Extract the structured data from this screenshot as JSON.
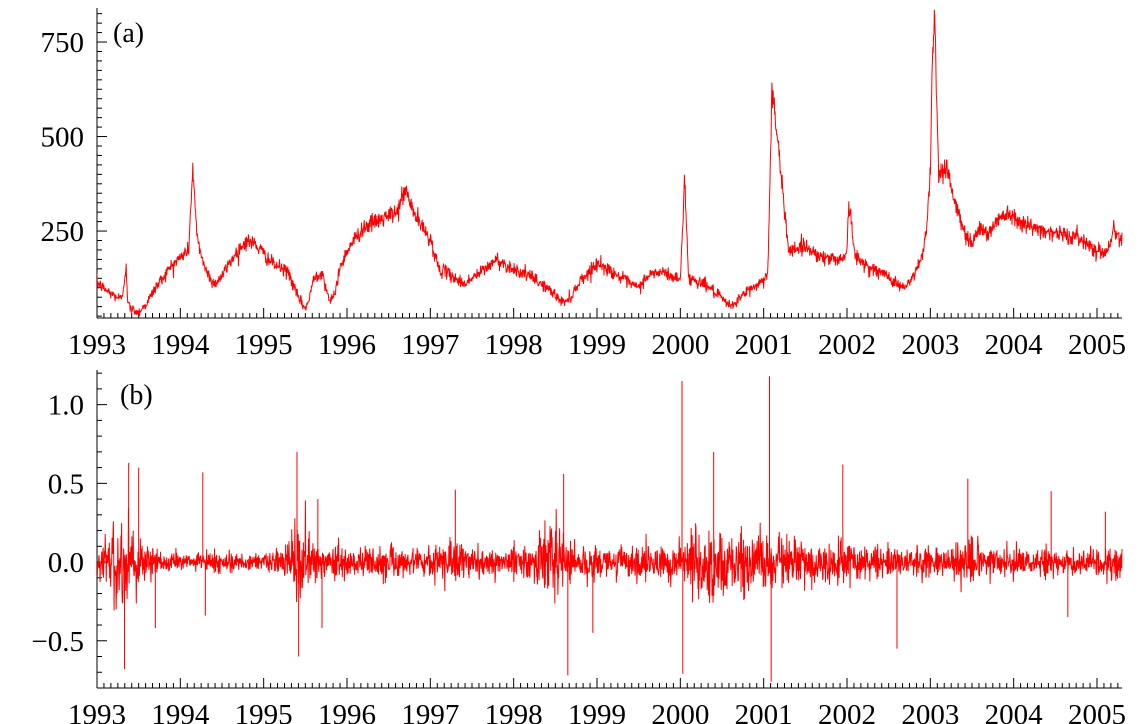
{
  "chart_data": [
    {
      "type": "line",
      "panel_label": "(a)",
      "xlim": [
        1993,
        2005.3
      ],
      "ylim": [
        20,
        840
      ],
      "x_ticks": [
        1993,
        1994,
        1995,
        1996,
        1997,
        1998,
        1999,
        2000,
        2001,
        2002,
        2003,
        2004,
        2005
      ],
      "x_tick_labels": [
        "1993",
        "1994",
        "1995",
        "1996",
        "1997",
        "1998",
        "1999",
        "2000",
        "2001",
        "2002",
        "2003",
        "2004",
        "2005"
      ],
      "y_ticks": [
        250,
        500,
        750
      ],
      "y_tick_labels": [
        "250",
        "500",
        "750"
      ],
      "grid": false,
      "color": "#ff0000",
      "noise": 9,
      "series": [
        {
          "x": [
            1993.0,
            1993.1,
            1993.2,
            1993.3,
            1993.35,
            1993.37,
            1993.4,
            1993.5,
            1993.6,
            1993.7,
            1993.8,
            1993.9,
            1994.0,
            1994.1,
            1994.15,
            1994.2,
            1994.3,
            1994.4,
            1994.5,
            1994.6,
            1994.7,
            1994.8,
            1994.9,
            1995.0,
            1995.1,
            1995.3,
            1995.4,
            1995.5,
            1995.55,
            1995.6,
            1995.7,
            1995.8,
            1995.85,
            1995.9,
            1996.0,
            1996.2,
            1996.4,
            1996.6,
            1996.7,
            1996.8,
            1996.9,
            1997.0,
            1997.1,
            1997.2,
            1997.4,
            1997.6,
            1997.8,
            1997.9,
            1998.0,
            1998.2,
            1998.4,
            1998.6,
            1998.7,
            1998.8,
            1998.9,
            1999.0,
            1999.2,
            1999.4,
            1999.5,
            1999.6,
            1999.7,
            1999.8,
            1999.9,
            2000.0,
            2000.05,
            2000.1,
            2000.3,
            2000.5,
            2000.6,
            2000.8,
            2001.0,
            2001.05,
            2001.1,
            2001.3,
            2001.5,
            2001.7,
            2001.9,
            2002.0,
            2002.02,
            2002.1,
            2002.3,
            2002.5,
            2002.6,
            2002.7,
            2002.8,
            2002.9,
            2002.95,
            2003.0,
            2003.02,
            2003.05,
            2003.1,
            2003.2,
            2003.3,
            2003.4,
            2003.5,
            2003.6,
            2003.7,
            2003.8,
            2003.9,
            2004.0,
            2004.2,
            2004.4,
            2004.6,
            2004.8,
            2005.0,
            2005.1,
            2005.2,
            2005.3
          ],
          "y": [
            115,
            95,
            80,
            70,
            160,
            60,
            45,
            35,
            60,
            100,
            130,
            160,
            180,
            200,
            420,
            230,
            150,
            110,
            130,
            170,
            200,
            225,
            215,
            190,
            165,
            140,
            80,
            45,
            70,
            130,
            140,
            60,
            80,
            140,
            200,
            260,
            280,
            300,
            360,
            300,
            260,
            230,
            150,
            140,
            110,
            140,
            175,
            160,
            150,
            130,
            100,
            60,
            80,
            120,
            140,
            165,
            140,
            110,
            100,
            130,
            140,
            140,
            130,
            120,
            390,
            125,
            110,
            70,
            50,
            90,
            120,
            140,
            630,
            200,
            210,
            180,
            175,
            190,
            330,
            180,
            150,
            130,
            110,
            100,
            130,
            180,
            250,
            400,
            680,
            830,
            400,
            420,
            320,
            250,
            220,
            260,
            240,
            280,
            300,
            290,
            260,
            250,
            240,
            230,
            200,
            190,
            250,
            230
          ]
        }
      ]
    },
    {
      "type": "line",
      "panel_label": "(b)",
      "xlim": [
        1993,
        2005.3
      ],
      "ylim": [
        -0.8,
        1.22
      ],
      "x_ticks": [
        1993,
        1994,
        1995,
        1996,
        1997,
        1998,
        1999,
        2000,
        2001,
        2002,
        2003,
        2004,
        2005
      ],
      "x_tick_labels": [
        "1993",
        "1994",
        "1995",
        "1996",
        "1997",
        "1998",
        "1999",
        "2000",
        "2001",
        "2002",
        "2003",
        "2004",
        "2005"
      ],
      "y_ticks": [
        -0.5,
        0.0,
        0.5,
        1.0
      ],
      "y_tick_labels": [
        "−0.5",
        "0.0",
        "0.5",
        "1.0"
      ],
      "grid": false,
      "color": "#ff0000",
      "volatility": {
        "x": [
          1993.0,
          1993.3,
          1993.4,
          1993.6,
          1993.8,
          1994.2,
          1994.4,
          1994.8,
          1995.2,
          1995.4,
          1995.6,
          1995.8,
          1996.2,
          1996.6,
          1996.9,
          1997.2,
          1997.5,
          1997.8,
          1998.2,
          1998.5,
          1998.8,
          1999.0,
          1999.5,
          2000.0,
          2000.2,
          2000.5,
          2001.0,
          2001.3,
          2001.8,
          2002.3,
          2002.8,
          2003.2,
          2003.5,
          2003.8,
          2004.2,
          2004.8,
          2005.3
        ],
        "y": [
          0.04,
          0.2,
          0.12,
          0.07,
          0.03,
          0.03,
          0.04,
          0.03,
          0.04,
          0.16,
          0.07,
          0.05,
          0.05,
          0.06,
          0.04,
          0.08,
          0.05,
          0.05,
          0.06,
          0.15,
          0.07,
          0.05,
          0.06,
          0.09,
          0.12,
          0.12,
          0.09,
          0.09,
          0.08,
          0.06,
          0.05,
          0.06,
          0.08,
          0.05,
          0.05,
          0.05,
          0.06
        ]
      },
      "spikes": [
        {
          "x": 1993.33,
          "y": -0.68
        },
        {
          "x": 1993.38,
          "y": 0.63
        },
        {
          "x": 1993.5,
          "y": 0.6
        },
        {
          "x": 1993.7,
          "y": -0.42
        },
        {
          "x": 1994.27,
          "y": 0.57
        },
        {
          "x": 1994.3,
          "y": -0.34
        },
        {
          "x": 1995.4,
          "y": 0.7
        },
        {
          "x": 1995.42,
          "y": -0.6
        },
        {
          "x": 1995.65,
          "y": 0.4
        },
        {
          "x": 1995.7,
          "y": -0.42
        },
        {
          "x": 1997.3,
          "y": 0.46
        },
        {
          "x": 1998.6,
          "y": 0.56
        },
        {
          "x": 1998.65,
          "y": -0.72
        },
        {
          "x": 1998.95,
          "y": -0.45
        },
        {
          "x": 2000.02,
          "y": 1.15
        },
        {
          "x": 2000.03,
          "y": -0.71
        },
        {
          "x": 2000.4,
          "y": 0.7
        },
        {
          "x": 2001.07,
          "y": 1.18
        },
        {
          "x": 2001.09,
          "y": -0.76
        },
        {
          "x": 2001.95,
          "y": 0.62
        },
        {
          "x": 2002.6,
          "y": -0.55
        },
        {
          "x": 2003.45,
          "y": 0.53
        },
        {
          "x": 2004.45,
          "y": 0.45
        },
        {
          "x": 2004.65,
          "y": -0.35
        },
        {
          "x": 2005.1,
          "y": 0.32
        }
      ]
    }
  ]
}
